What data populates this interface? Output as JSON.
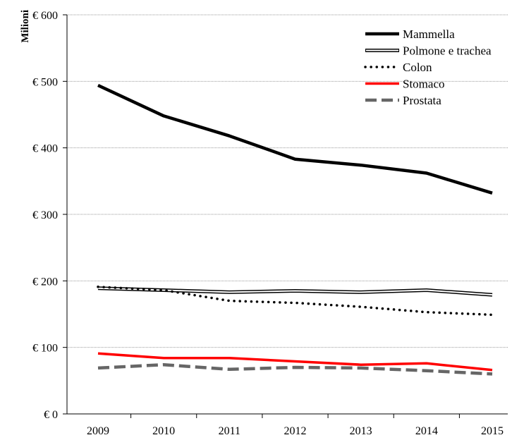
{
  "chart_data": {
    "type": "line",
    "ylabel": "Milioni",
    "x": [
      "2009",
      "2010",
      "2011",
      "2012",
      "2013",
      "2014",
      "2015"
    ],
    "ylim": [
      0,
      600
    ],
    "y_ticks": [
      "€ 0",
      "€ 100",
      "€ 200",
      "€ 300",
      "€ 400",
      "€ 500",
      "€ 600"
    ],
    "grid": true,
    "legend_position": "top-right",
    "series": [
      {
        "name": "Mammella",
        "color": "#000000",
        "style": "solid-thick",
        "values": [
          494,
          448,
          418,
          383,
          374,
          362,
          332
        ]
      },
      {
        "name": "Polmone e trachea",
        "color": "#000000",
        "style": "double-line",
        "values": [
          189,
          186,
          183,
          185,
          183,
          186,
          179
        ]
      },
      {
        "name": "Colon",
        "color": "#000000",
        "style": "dotted",
        "values": [
          191,
          186,
          170,
          167,
          161,
          153,
          149
        ]
      },
      {
        "name": "Stomaco",
        "color": "#ff0000",
        "style": "solid",
        "values": [
          91,
          84,
          84,
          79,
          74,
          76,
          66
        ]
      },
      {
        "name": "Prostata",
        "color": "#666666",
        "style": "dashed",
        "values": [
          69,
          74,
          67,
          70,
          69,
          65,
          60
        ]
      }
    ]
  }
}
